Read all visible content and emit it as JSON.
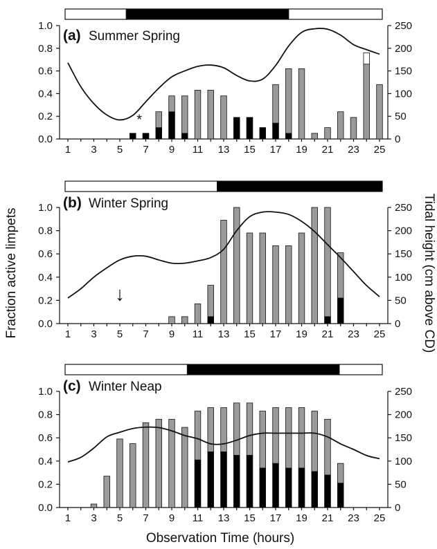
{
  "figure": {
    "ylabel_left": "Fraction active limpets",
    "ylabel_right": "Tidal height (cm above CD)",
    "xlabel": "Observation Time (hours)"
  },
  "colors": {
    "total": "#9a9a9a",
    "dark_fraction": "#000000",
    "white_fraction": "#ffffff",
    "night": "#000000",
    "day": "#ffffff",
    "line": "#111111"
  },
  "chart_data": [
    {
      "type": "bar",
      "letter": "(a)",
      "title": "Summer Spring",
      "x": [
        1,
        2,
        3,
        4,
        5,
        6,
        7,
        8,
        9,
        10,
        11,
        12,
        13,
        14,
        15,
        16,
        17,
        18,
        19,
        20,
        21,
        22,
        23,
        24,
        25
      ],
      "xticks": [
        "1",
        "3",
        "5",
        "7",
        "9",
        "11",
        "13",
        "15",
        "17",
        "19",
        "21",
        "23",
        "25"
      ],
      "ylim": [
        0,
        1.0
      ],
      "yticks": [
        "0.0",
        "0.2",
        "0.4",
        "0.6",
        "0.8",
        "1.0"
      ],
      "y2lim": [
        0,
        250
      ],
      "y2ticks": [
        "0",
        "50",
        "100",
        "150",
        "200",
        "250"
      ],
      "series": [
        {
          "values": [
            null,
            null,
            null,
            null,
            null,
            0.05,
            0.05,
            0.24,
            0.38,
            0.38,
            0.43,
            0.43,
            0.38,
            0.19,
            0.19,
            0.1,
            0.48,
            0.62,
            0.62,
            0.05,
            0.1,
            0.24,
            0.19,
            0.76,
            0.48
          ]
        },
        {
          "values": [
            null,
            null,
            null,
            null,
            null,
            0.05,
            0.05,
            0.1,
            0.24,
            0.05,
            null,
            null,
            null,
            0.19,
            0.19,
            0.1,
            0.14,
            0.05,
            null,
            null,
            null,
            null,
            null,
            null,
            null
          ]
        },
        {
          "values": [
            null,
            null,
            null,
            null,
            null,
            null,
            null,
            null,
            null,
            null,
            null,
            null,
            null,
            null,
            null,
            null,
            null,
            null,
            null,
            null,
            null,
            null,
            null,
            0.1,
            null
          ]
        },
        {
          "values": [
            168,
            115,
            78,
            53,
            42,
            52,
            82,
            112,
            137,
            150,
            160,
            163,
            157,
            140,
            128,
            132,
            162,
            205,
            235,
            243,
            242,
            229,
            208,
            197,
            187
          ],
          "x": [
            1,
            2,
            3,
            4,
            5,
            6,
            7,
            8,
            9,
            10,
            11,
            12,
            13,
            14,
            15,
            16,
            17,
            18,
            19,
            20,
            21,
            22,
            23,
            24,
            25
          ]
        }
      ],
      "annotations": [
        {
          "text": "*",
          "x": 6.5,
          "y": 0.13
        }
      ],
      "light_regime": [
        {
          "type": "day",
          "from": 1,
          "to": 5.5
        },
        {
          "type": "night",
          "from": 5.5,
          "to": 18
        },
        {
          "type": "day",
          "from": 18,
          "to": 25
        }
      ]
    },
    {
      "type": "bar",
      "letter": "(b)",
      "title": "Winter Spring",
      "x": [
        1,
        2,
        3,
        4,
        5,
        6,
        7,
        8,
        9,
        10,
        11,
        12,
        13,
        14,
        15,
        16,
        17,
        18,
        19,
        20,
        21,
        22,
        23,
        24,
        25
      ],
      "xticks": [
        "1",
        "3",
        "5",
        "7",
        "9",
        "11",
        "13",
        "15",
        "17",
        "19",
        "21",
        "23",
        "25"
      ],
      "ylim": [
        0,
        1.0
      ],
      "yticks": [
        "0.0",
        "0.2",
        "0.4",
        "0.6",
        "0.8",
        "1.0"
      ],
      "y2lim": [
        0,
        250
      ],
      "y2ticks": [
        "0",
        "50",
        "100",
        "150",
        "200",
        "250"
      ],
      "series": [
        {
          "values": [
            null,
            null,
            null,
            null,
            null,
            null,
            null,
            null,
            0.06,
            0.06,
            0.17,
            0.33,
            0.89,
            1.0,
            0.78,
            0.78,
            0.67,
            0.67,
            0.78,
            1.0,
            1.0,
            0.61,
            null,
            null,
            null
          ]
        },
        {
          "values": [
            null,
            null,
            null,
            null,
            null,
            null,
            null,
            null,
            null,
            null,
            null,
            0.06,
            null,
            null,
            null,
            null,
            null,
            null,
            null,
            null,
            0.06,
            0.22,
            null,
            null,
            null
          ]
        },
        {
          "values": [
            55,
            75,
            100,
            120,
            137,
            145,
            145,
            137,
            130,
            130,
            135,
            142,
            160,
            200,
            230,
            240,
            240,
            235,
            220,
            198,
            170,
            142,
            112,
            82,
            58
          ],
          "x": [
            1,
            2,
            3,
            4,
            5,
            6,
            7,
            8,
            9,
            10,
            11,
            12,
            13,
            14,
            15,
            16,
            17,
            18,
            19,
            20,
            21,
            22,
            23,
            24,
            25
          ]
        }
      ],
      "annotations": [
        {
          "text": "↓",
          "x": 5,
          "y": 0.2
        }
      ],
      "light_regime": [
        {
          "type": "day",
          "from": 1,
          "to": 12.5
        },
        {
          "type": "night",
          "from": 12.5,
          "to": 25
        }
      ]
    },
    {
      "type": "bar",
      "letter": "(c)",
      "title": "Winter Neap",
      "x": [
        1,
        2,
        3,
        4,
        5,
        6,
        7,
        8,
        9,
        10,
        11,
        12,
        13,
        14,
        15,
        16,
        17,
        18,
        19,
        20,
        21,
        22,
        23,
        24,
        25
      ],
      "xticks": [
        "1",
        "3",
        "5",
        "7",
        "9",
        "11",
        "13",
        "15",
        "17",
        "19",
        "21",
        "23",
        "25"
      ],
      "ylim": [
        0,
        1.0
      ],
      "yticks": [
        "0.0",
        "0.2",
        "0.4",
        "0.6",
        "0.8",
        "1.0"
      ],
      "y2lim": [
        0,
        250
      ],
      "y2ticks": [
        "0",
        "50",
        "100",
        "150",
        "200",
        "250"
      ],
      "series": [
        {
          "values": [
            null,
            null,
            0.03,
            0.27,
            0.59,
            0.55,
            0.73,
            0.76,
            0.76,
            0.69,
            0.83,
            0.86,
            0.86,
            0.9,
            0.9,
            0.83,
            0.86,
            0.86,
            0.86,
            0.83,
            0.76,
            0.38,
            null,
            null,
            null
          ]
        },
        {
          "values": [
            null,
            null,
            null,
            null,
            null,
            null,
            null,
            null,
            null,
            null,
            0.41,
            0.48,
            0.48,
            0.45,
            0.45,
            0.34,
            0.38,
            0.34,
            0.34,
            0.31,
            0.28,
            0.21,
            null,
            null,
            null
          ]
        },
        {
          "values": [
            98,
            108,
            128,
            152,
            162,
            170,
            173,
            172,
            165,
            155,
            148,
            137,
            137,
            145,
            155,
            160,
            160,
            160,
            160,
            160,
            152,
            137,
            125,
            112,
            105
          ],
          "x": [
            1,
            2,
            3,
            4,
            5,
            6,
            7,
            8,
            9,
            10,
            11,
            12,
            13,
            14,
            15,
            16,
            17,
            18,
            19,
            20,
            21,
            22,
            23,
            24,
            25
          ]
        }
      ],
      "light_regime": [
        {
          "type": "day",
          "from": 1,
          "to": 10.2
        },
        {
          "type": "night",
          "from": 10.2,
          "to": 21.9
        },
        {
          "type": "day",
          "from": 21.9,
          "to": 25
        }
      ]
    }
  ]
}
